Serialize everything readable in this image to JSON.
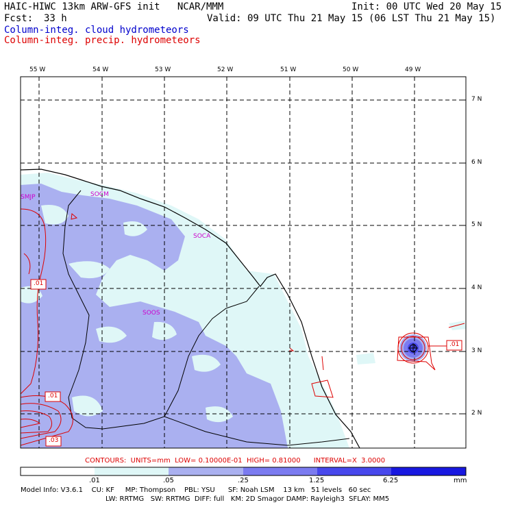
{
  "header": {
    "title": "HAIC-HIWC 13km ARW-GFS init   NCAR/MMM",
    "init": "Init: 00 UTC Wed 20 May 15",
    "fcst_label": "Fcst:",
    "fcst_value": "33 h",
    "valid": "Valid: 09 UTC Thu 21 May 15 (06 LST Thu 21 May 15)",
    "field_cloud": "Column-integ. cloud hydrometeors",
    "field_precip": "Column-integ. precip. hydrometeors"
  },
  "map": {
    "lon_labels": [
      "55 W",
      "54 W",
      "53 W",
      "52 W",
      "51 W",
      "50 W",
      "49 W"
    ],
    "lat_labels": [
      "7 N",
      "6 N",
      "5 N",
      "4 N",
      "3 N",
      "2 N"
    ],
    "stations": [
      "SMJP",
      "SOCM",
      "SOCA",
      "SOOS"
    ],
    "contour_labels": [
      ".01",
      ".01",
      ".03",
      ".01"
    ]
  },
  "contours_info": "CONTOURS:  UNITS=mm  LOW= 0.10000E-01  HIGH= 0.81000      INTERVAL=X  3.0000",
  "colorbar": {
    "ticks": [
      ".01",
      ".05",
      ".25",
      "1.25",
      "6.25"
    ],
    "units": "mm",
    "colors": [
      "#ffffff",
      "#dff7f7",
      "#aab0f0",
      "#7b7bf0",
      "#4848ec",
      "#1818e0"
    ]
  },
  "model_info": {
    "line1": "Model Info: V3.6.1    CU: KF     MP: Thompson    PBL: YSU      SF: Noah LSM    13 km   51 levels   60 sec",
    "line2": "LW: RRTMG   SW: RRTMG  DIFF: full   KM: 2D Smagor DAMP: Rayleigh3  SFLAY: MM5"
  }
}
